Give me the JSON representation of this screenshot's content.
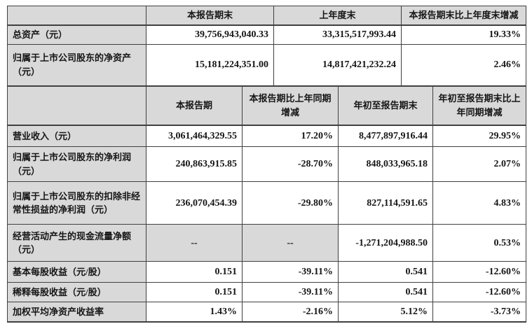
{
  "colors": {
    "header_bg": "#d9d9d9",
    "cell_bg": "#ffffff",
    "border": "#404040",
    "text": "#161616"
  },
  "period_end_table": {
    "headers": [
      "",
      "本报告期末",
      "上年度末",
      "本报告期末比上年度末增减"
    ],
    "rows": [
      {
        "label": "总资产（元）",
        "values": [
          "39,756,943,040.33",
          "33,315,517,993.44",
          "19.33%"
        ]
      },
      {
        "label": "归属于上市公司股东的净资产\n（元）",
        "values": [
          "15,181,224,351.00",
          "14,817,421,232.24",
          "2.46%"
        ]
      }
    ]
  },
  "reporting_period_table": {
    "headers": [
      "",
      "本报告期",
      "本报告期比上年同期\n增减",
      "年初至报告期末",
      "年初至报告期末比上\n年同期增减"
    ],
    "rows": [
      {
        "label": "营业收入（元）",
        "values": [
          "3,061,464,329.55",
          "17.20%",
          "8,477,897,916.44",
          "29.95%"
        ]
      },
      {
        "label": "归属于上市公司股东的净利润\n（元）",
        "values": [
          "240,863,915.85",
          "-28.70%",
          "848,033,965.18",
          "2.07%"
        ]
      },
      {
        "label": "归属于上市公司股东的扣除非经\n常性损益的净利润（元）",
        "values": [
          "236,070,454.39",
          "-29.80%",
          "827,114,591.65",
          "4.83%"
        ]
      },
      {
        "label": "经营活动产生的现金流量净额\n（元）",
        "values": [
          "--",
          "--",
          "-1,271,204,988.50",
          "0.53%"
        ],
        "gray": [
          0,
          1
        ]
      },
      {
        "label": "基本每股收益（元/股）",
        "values": [
          "0.151",
          "-39.11%",
          "0.541",
          "-12.60%"
        ]
      },
      {
        "label": "稀释每股收益（元/股）",
        "values": [
          "0.151",
          "-39.11%",
          "0.541",
          "-12.60%"
        ]
      },
      {
        "label": "加权平均净资产收益率",
        "values": [
          "1.43%",
          "-2.16%",
          "5.12%",
          "-3.73%"
        ]
      }
    ]
  }
}
